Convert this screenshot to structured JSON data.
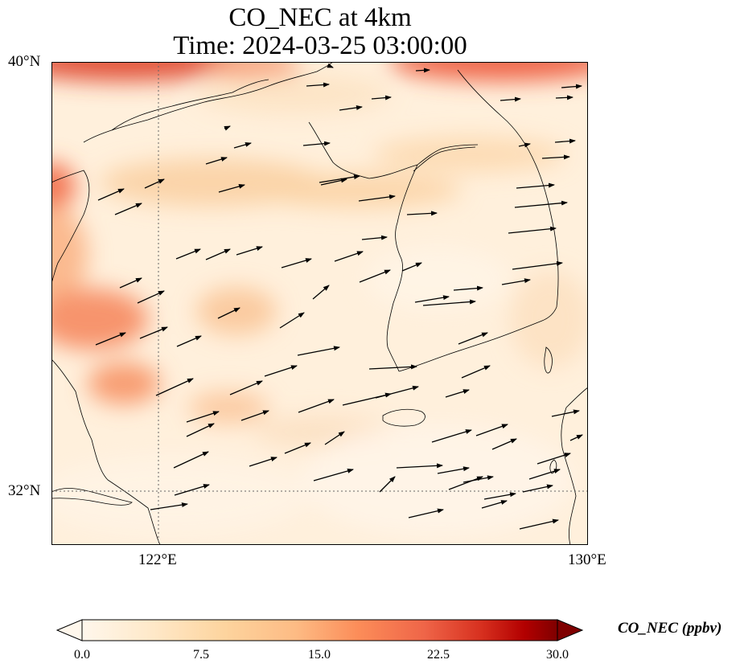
{
  "title": {
    "line1": "CO_NEC at 4km",
    "line2": "Time: 2024-03-25 03:00:00"
  },
  "map": {
    "lon_range": [
      120,
      130
    ],
    "lat_range": [
      31,
      40
    ],
    "lat_ticks": [
      {
        "value": 40,
        "label": "40°N"
      },
      {
        "value": 32,
        "label": "32°N"
      }
    ],
    "lon_ticks": [
      {
        "value": 122,
        "label": "122°E"
      },
      {
        "value": 130,
        "label": "130°E"
      }
    ],
    "gridlines": "dotted at 122°E and 32°N"
  },
  "chart_data": {
    "type": "heatmap",
    "variable": "CO_NEC",
    "units": "ppbv",
    "colormap": "OrRd",
    "colorbar": {
      "range": [
        0.0,
        30.0
      ],
      "ticks": [
        "0.0",
        "7.5",
        "15.0",
        "22.5",
        "30.0"
      ],
      "extend": "both",
      "label": "CO_NEC (ppbv)"
    },
    "overlay": "wind vectors (mostly westerly/west-southwesterly)",
    "features": "coastlines of China, Korean Peninsula, Jeju Island, western Japan"
  },
  "colors": {
    "low": "#fff7ec",
    "mid": "#fdbb84",
    "high": "#d7301f",
    "max": "#7f0000"
  }
}
